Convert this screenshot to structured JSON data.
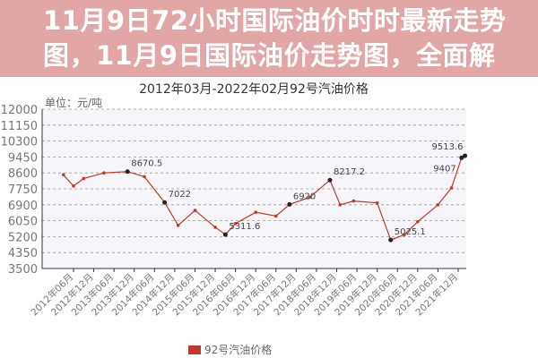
{
  "chart_data": {
    "type": "line",
    "title": "2012年03月-2022年02月92号汽油价格",
    "unit_label": "单位：元/吨",
    "ylim": [
      3500,
      12000
    ],
    "yticks": [
      3500,
      4350,
      5200,
      6050,
      6900,
      7750,
      8600,
      9450,
      10300,
      11150,
      12000
    ],
    "xticks": [
      "2012年06月",
      "2012年12月",
      "2013年06月",
      "2013年12月",
      "2014年06月",
      "2014年12月",
      "2015年06月",
      "2015年12月",
      "2016年06月",
      "2016年12月",
      "2017年06月",
      "2017年12月",
      "2018年06月",
      "2018年12月",
      "2019年06月",
      "2019年12月",
      "2020年06月",
      "2020年12月",
      "2021年06月",
      "2021年12月"
    ],
    "xlim": [
      "2012-03",
      "2022-02"
    ],
    "grid": true,
    "legend": "bottom",
    "series": [
      {
        "name": "92号汽油价格",
        "color": "#c0392b",
        "points": [
          [
            "2012-03",
            8500
          ],
          [
            "2012-06",
            7900
          ],
          [
            "2012-09",
            8300
          ],
          [
            "2013-03",
            8600
          ],
          [
            "2013-10",
            8670.5
          ],
          [
            "2014-03",
            8400
          ],
          [
            "2014-09",
            7022
          ],
          [
            "2015-01",
            5800
          ],
          [
            "2015-06",
            6600
          ],
          [
            "2015-12",
            5700
          ],
          [
            "2016-03",
            5311.6
          ],
          [
            "2016-06",
            5900
          ],
          [
            "2016-12",
            6500
          ],
          [
            "2017-06",
            6300
          ],
          [
            "2017-10",
            6920
          ],
          [
            "2018-04",
            7300
          ],
          [
            "2018-10",
            8217.2
          ],
          [
            "2019-01",
            6900
          ],
          [
            "2019-05",
            7100
          ],
          [
            "2019-12",
            7000
          ],
          [
            "2020-04",
            5025.1
          ],
          [
            "2020-08",
            5300
          ],
          [
            "2020-12",
            6000
          ],
          [
            "2021-06",
            6900
          ],
          [
            "2021-10",
            7800
          ],
          [
            "2022-01",
            9407
          ],
          [
            "2022-02",
            9513.6
          ]
        ],
        "data_labels": [
          [
            "2013-10",
            "8670.5"
          ],
          [
            "2014-09",
            "7022"
          ],
          [
            "2016-03",
            "5311.6"
          ],
          [
            "2017-10",
            "6920"
          ],
          [
            "2018-10",
            "8217.2"
          ],
          [
            "2020-04",
            "5025.1"
          ],
          [
            "2022-01",
            "9407"
          ],
          [
            "2022-02",
            "9513.6"
          ]
        ]
      }
    ]
  },
  "overlay": {
    "line1": "11月9日72小时国际油价时时最新走势",
    "line2": "图，11月9日国际油价走势图，全面解",
    "color": "#de9696"
  }
}
